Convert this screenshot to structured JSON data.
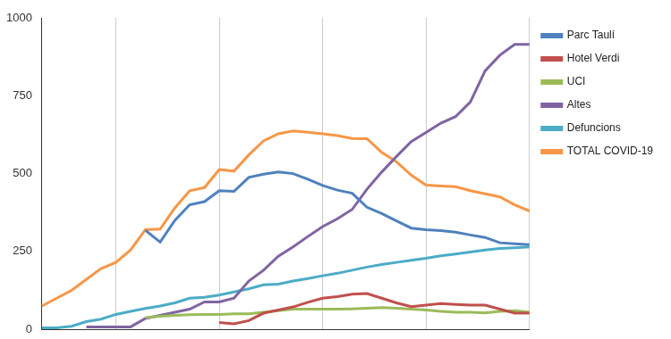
{
  "chart_data": {
    "type": "line",
    "categories": [
      null,
      null,
      null,
      null,
      null,
      null,
      null,
      null,
      null,
      null,
      null,
      null,
      null,
      null,
      null,
      null,
      null,
      null,
      null,
      null,
      null,
      null,
      null,
      null,
      null,
      null,
      null,
      null,
      null,
      null,
      null,
      null,
      null,
      null
    ],
    "series": [
      {
        "name": "Parc Taulí",
        "color": "#4f81bd",
        "values": [
          null,
          null,
          null,
          null,
          null,
          null,
          null,
          318,
          280,
          350,
          400,
          410,
          445,
          443,
          488,
          498,
          505,
          500,
          482,
          462,
          447,
          437,
          392,
          372,
          348,
          325,
          320,
          317,
          312,
          303,
          295,
          278,
          275,
          272
        ]
      },
      {
        "name": "Hotel Verdi",
        "color": "#c0504d",
        "values": [
          null,
          null,
          null,
          null,
          null,
          null,
          null,
          null,
          null,
          null,
          null,
          null,
          22,
          18,
          28,
          52,
          62,
          72,
          87,
          100,
          105,
          113,
          115,
          100,
          85,
          73,
          78,
          83,
          80,
          78,
          78,
          65,
          52,
          52
        ]
      },
      {
        "name": "UCI",
        "color": "#9bbb59",
        "values": [
          null,
          null,
          null,
          null,
          null,
          null,
          null,
          38,
          42,
          45,
          47,
          48,
          48,
          50,
          50,
          55,
          60,
          65,
          65,
          65,
          65,
          66,
          68,
          70,
          68,
          65,
          62,
          58,
          55,
          55,
          53,
          58,
          60,
          55
        ]
      },
      {
        "name": "Altes",
        "color": "#8064a2",
        "values": [
          null,
          null,
          null,
          8,
          8,
          8,
          8,
          35,
          45,
          55,
          65,
          88,
          88,
          100,
          155,
          190,
          235,
          265,
          298,
          330,
          355,
          385,
          450,
          505,
          555,
          603,
          632,
          662,
          683,
          730,
          830,
          880,
          915,
          915
        ]
      },
      {
        "name": "Defuncions",
        "color": "#4bacc6",
        "values": [
          5,
          5,
          10,
          25,
          33,
          48,
          58,
          67,
          75,
          85,
          100,
          103,
          110,
          120,
          130,
          143,
          145,
          155,
          163,
          172,
          180,
          190,
          200,
          208,
          215,
          222,
          228,
          236,
          242,
          248,
          255,
          260,
          262,
          265
        ]
      },
      {
        "name": "TOTAL COVID-19",
        "color": "#f79646",
        "values": [
          75,
          100,
          125,
          160,
          195,
          215,
          255,
          320,
          322,
          390,
          445,
          455,
          513,
          508,
          560,
          605,
          628,
          637,
          633,
          628,
          622,
          613,
          612,
          568,
          538,
          495,
          463,
          460,
          458,
          445,
          435,
          425,
          400,
          380
        ]
      }
    ],
    "ylim": [
      0,
      1000
    ],
    "yticks": [
      0,
      250,
      500,
      750,
      1000
    ],
    "grid": true,
    "legend": "right",
    "tick_labels": "y"
  }
}
